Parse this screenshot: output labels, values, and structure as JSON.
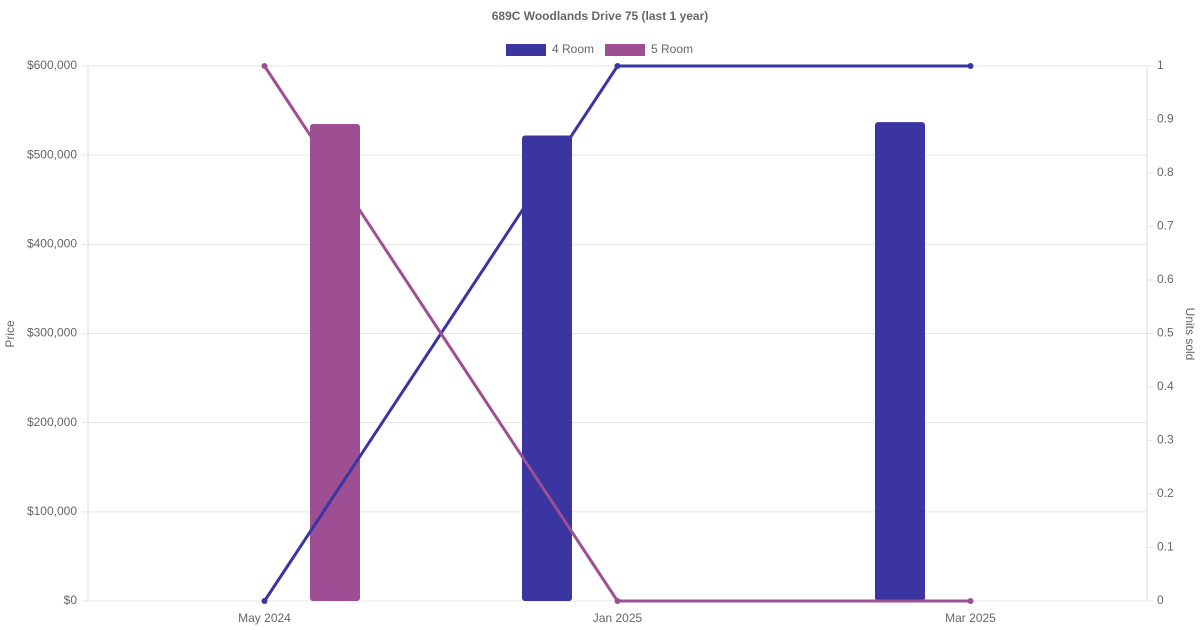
{
  "chart_data": {
    "type": "bar-line",
    "title": "689C Woodlands Drive 75 (last 1 year)",
    "y_label": "Price",
    "y2_label": "Units sold",
    "categories": [
      "May 2024",
      "Jan 2025",
      "Mar 2025"
    ],
    "series": [
      {
        "name": "4 Room",
        "color": "#3a35a0",
        "values": [
          null,
          522000,
          537000
        ],
        "units": [
          0,
          1,
          1
        ]
      },
      {
        "name": "5 Room",
        "color": "#9e4f93",
        "values": [
          535000,
          null,
          null
        ],
        "units": [
          1,
          0,
          0
        ]
      }
    ],
    "ylim": [
      0,
      600000
    ],
    "yticks": [
      {
        "value": 0,
        "label": "$0"
      },
      {
        "value": 100000,
        "label": "$100,000"
      },
      {
        "value": 200000,
        "label": "$200,000"
      },
      {
        "value": 300000,
        "label": "$300,000"
      },
      {
        "value": 400000,
        "label": "$400,000"
      },
      {
        "value": 500000,
        "label": "$500,000"
      },
      {
        "value": 600000,
        "label": "$600,000"
      }
    ],
    "y2lim": [
      0,
      1
    ],
    "y2ticks": [
      0,
      0.1,
      0.2,
      0.3,
      0.4,
      0.5,
      0.6,
      0.7,
      0.8,
      0.9,
      1
    ],
    "grid": true
  }
}
